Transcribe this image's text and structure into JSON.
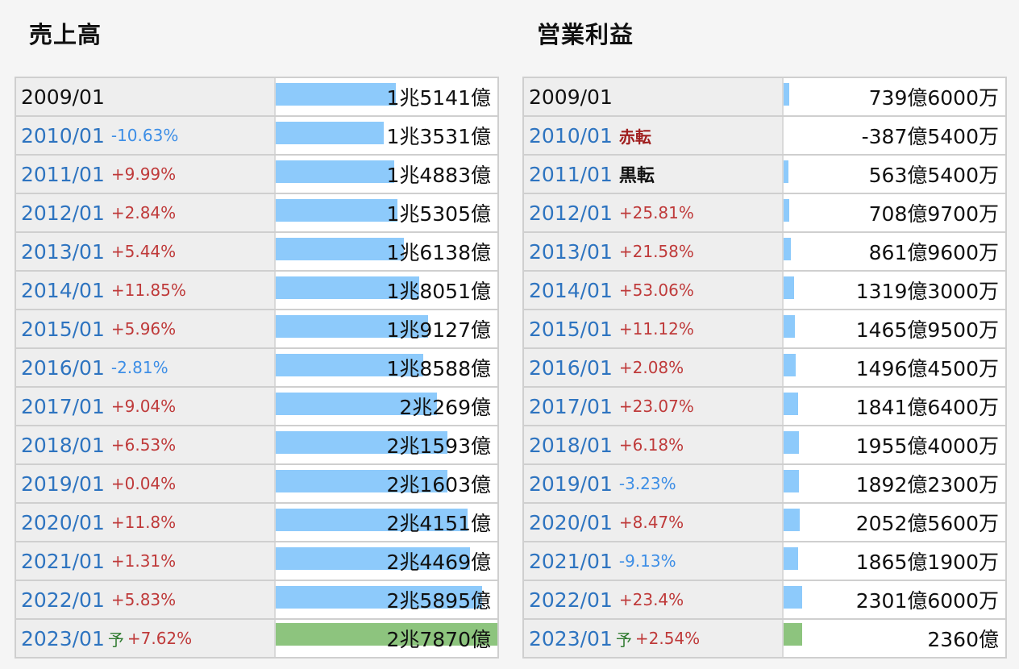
{
  "colors": {
    "bar": "#8dcafb",
    "forecast_bar": "#8dc47e",
    "up": "#bf3a3a",
    "down": "#3d8ee6",
    "year": "#2e74c0"
  },
  "forecast_mark": "予",
  "chart_data": [
    {
      "type": "bar",
      "title": "売上高",
      "unit": "億円",
      "categories": [
        "2009/01",
        "2010/01",
        "2011/01",
        "2012/01",
        "2013/01",
        "2014/01",
        "2015/01",
        "2016/01",
        "2017/01",
        "2018/01",
        "2019/01",
        "2020/01",
        "2021/01",
        "2022/01",
        "2023/01"
      ],
      "values": [
        15141,
        13531,
        14883,
        15305,
        16138,
        18051,
        19127,
        18588,
        20269,
        21593,
        21603,
        24151,
        24469,
        25895,
        27870
      ],
      "value_labels": [
        "1兆5141億",
        "1兆3531億",
        "1兆4883億",
        "1兆5305億",
        "1兆6138億",
        "1兆8051億",
        "1兆9127億",
        "1兆8588億",
        "2兆269億",
        "2兆1593億",
        "2兆1603億",
        "2兆4151億",
        "2兆4469億",
        "2兆5895億",
        "2兆7870億"
      ],
      "changes": [
        "",
        "-10.63%",
        "+9.99%",
        "+2.84%",
        "+5.44%",
        "+11.85%",
        "+5.96%",
        "-2.81%",
        "+9.04%",
        "+6.53%",
        "+0.04%",
        "+11.8%",
        "+1.31%",
        "+5.83%",
        "+7.62%"
      ],
      "forecast": [
        false,
        false,
        false,
        false,
        false,
        false,
        false,
        false,
        false,
        false,
        false,
        false,
        false,
        false,
        true
      ],
      "xlim": [
        0,
        27870
      ]
    },
    {
      "type": "bar",
      "title": "営業利益",
      "unit": "億円",
      "categories": [
        "2009/01",
        "2010/01",
        "2011/01",
        "2012/01",
        "2013/01",
        "2014/01",
        "2015/01",
        "2016/01",
        "2017/01",
        "2018/01",
        "2019/01",
        "2020/01",
        "2021/01",
        "2022/01",
        "2023/01"
      ],
      "values": [
        739.6,
        -387.54,
        563.54,
        708.97,
        861.96,
        1319.3,
        1465.95,
        1496.45,
        1841.64,
        1955.4,
        1892.23,
        2052.56,
        1865.19,
        2301.6,
        2360
      ],
      "value_labels": [
        "739億6000万",
        "-387億5400万",
        "563億5400万",
        "708億9700万",
        "861億9600万",
        "1319億3000万",
        "1465億9500万",
        "1496億4500万",
        "1841億6400万",
        "1955億4000万",
        "1892億2300万",
        "2052億5600万",
        "1865億1900万",
        "2301億6000万",
        "2360億"
      ],
      "changes": [
        "",
        "赤転",
        "黒転",
        "+25.81%",
        "+21.58%",
        "+53.06%",
        "+11.12%",
        "+2.08%",
        "+23.07%",
        "+6.18%",
        "-3.23%",
        "+8.47%",
        "-9.13%",
        "+23.4%",
        "+2.54%"
      ],
      "forecast": [
        false,
        false,
        false,
        false,
        false,
        false,
        false,
        false,
        false,
        false,
        false,
        false,
        false,
        false,
        true
      ],
      "xlim": [
        0,
        27870
      ]
    }
  ]
}
